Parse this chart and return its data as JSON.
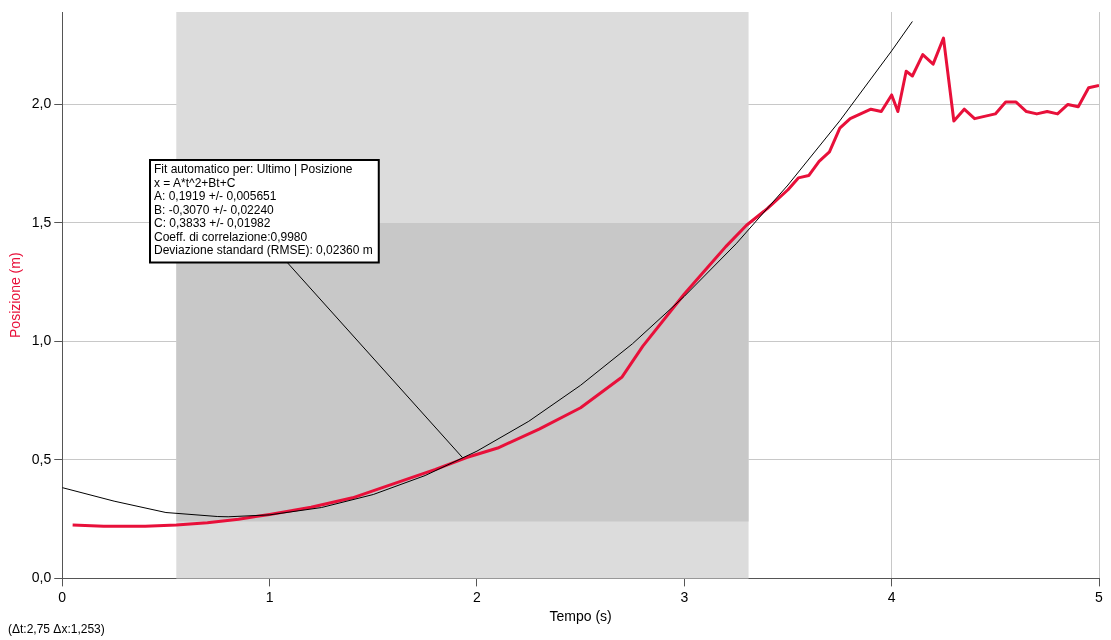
{
  "chart_data": {
    "type": "line",
    "xlabel": "Tempo (s)",
    "ylabel": "Posizione (m)",
    "xlim": [
      0,
      5
    ],
    "xticks": [
      0,
      1,
      2,
      3,
      4,
      5
    ],
    "ylim": [
      0,
      2.39
    ],
    "yticks": [
      {
        "value": 0,
        "label": "0,0"
      },
      {
        "value": 0.5,
        "label": "0,5"
      },
      {
        "value": 1,
        "label": "1,0"
      },
      {
        "value": 1.5,
        "label": "1,5"
      },
      {
        "value": 2,
        "label": "2,0"
      }
    ],
    "grid": true,
    "legend": false,
    "marker": "none",
    "bands": [
      {
        "axis": "x",
        "from": 0.55,
        "to": 3.31,
        "color": "#dcdcdc"
      },
      {
        "axis": "y",
        "from": 0.24,
        "to": 1.5,
        "color": "#c8c8c8"
      }
    ],
    "series": [
      {
        "color": "#e8103a",
        "x": [
          0.05,
          0.2,
          0.4,
          0.55,
          0.7,
          0.85,
          1.0,
          1.2,
          1.4,
          1.6,
          1.8,
          1.95,
          2.1,
          2.3,
          2.5,
          2.7,
          2.8,
          3.0,
          3.2,
          3.3,
          3.4,
          3.5,
          3.55,
          3.6,
          3.65,
          3.7,
          3.75,
          3.8,
          3.85,
          3.9,
          3.95,
          4.0,
          4.03,
          4.07,
          4.1,
          4.15,
          4.2,
          4.25,
          4.3,
          4.35,
          4.4,
          4.5,
          4.55,
          4.6,
          4.65,
          4.7,
          4.75,
          4.8,
          4.85,
          4.9,
          4.95,
          5.0
        ],
        "values": [
          0.225,
          0.22,
          0.22,
          0.225,
          0.235,
          0.25,
          0.27,
          0.3,
          0.34,
          0.4,
          0.46,
          0.51,
          0.55,
          0.63,
          0.72,
          0.85,
          0.98,
          1.2,
          1.4,
          1.49,
          1.56,
          1.64,
          1.69,
          1.7,
          1.76,
          1.8,
          1.9,
          1.94,
          1.96,
          1.98,
          1.97,
          2.04,
          1.97,
          2.14,
          2.12,
          2.21,
          2.17,
          2.28,
          1.93,
          1.98,
          1.94,
          1.96,
          2.01,
          2.01,
          1.97,
          1.96,
          1.97,
          1.96,
          2.0,
          1.99,
          2.07,
          2.08
        ]
      },
      {
        "color": "#000000",
        "x": [
          0,
          0.25,
          0.5,
          0.75,
          0.8,
          1,
          1.25,
          1.5,
          1.75,
          2,
          2.25,
          2.5,
          2.75,
          3,
          3.25,
          3.5,
          3.75,
          4,
          4.1
        ],
        "values": [
          0.383,
          0.326,
          0.278,
          0.261,
          0.26,
          0.268,
          0.299,
          0.354,
          0.434,
          0.537,
          0.663,
          0.815,
          0.99,
          1.19,
          1.412,
          1.66,
          1.931,
          2.226,
          2.35
        ]
      }
    ],
    "annotations": [
      {
        "text": "Fit automatico per: Ultimo | Posizione\nx = A*t^2+Bt+C\nA: 0,1919 +/- 0,005651\nB: -0,3070 +/- 0,02240\nC: 0,3833 +/- 0,01982\nCoeff. di correlazione:0,9980\nDeviazione standard (RMSE): 0,02360 m",
        "x": 1.93,
        "y": 0.51
      },
      "(Δt:2,75 Δx:1,253)"
    ]
  }
}
